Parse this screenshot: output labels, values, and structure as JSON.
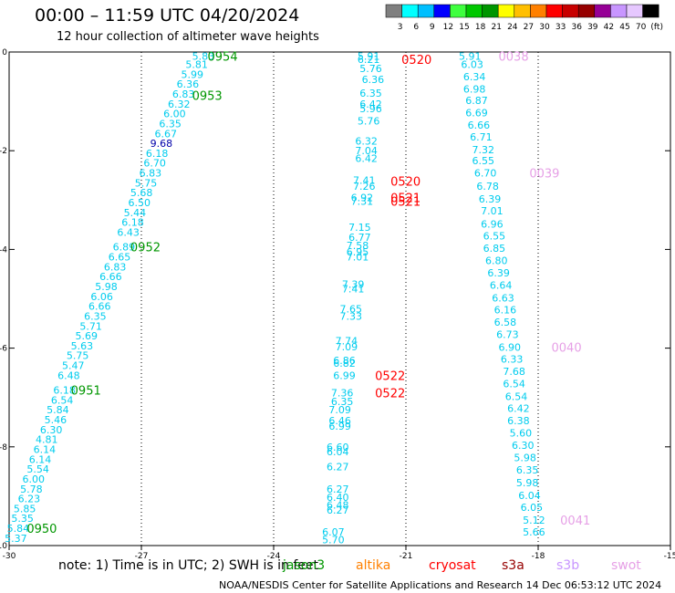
{
  "header": {
    "title": "00:00 – 11:59 UTC 04/20/2024",
    "subtitle": "12 hour collection of altimeter wave heights"
  },
  "color_scale": {
    "labels": [
      "3",
      "6",
      "9",
      "12",
      "15",
      "18",
      "21",
      "24",
      "27",
      "30",
      "33",
      "36",
      "39",
      "42",
      "45",
      "70",
      "(ft)"
    ],
    "colors": [
      "#7f7f7f",
      "#00ffff",
      "#00bfff",
      "#0000ff",
      "#3fff3f",
      "#00c800",
      "#009600",
      "#ffff00",
      "#ffbf00",
      "#ff8000",
      "#ff0000",
      "#c80000",
      "#960000",
      "#960096",
      "#c896ff",
      "#e6c8ff",
      "#000000"
    ]
  },
  "footer": {
    "note_text": "note: 1) Time is in UTC; 2) SWH is in feet",
    "missions": [
      {
        "name": "jason3",
        "color": "#009600"
      },
      {
        "name": "altika",
        "color": "#ff8000"
      },
      {
        "name": "cryosat",
        "color": "#ff0000"
      },
      {
        "name": "s3a",
        "color": "#960000"
      },
      {
        "name": "s3b",
        "color": "#c896ff"
      },
      {
        "name": "swot",
        "color": "#e6a0e6"
      }
    ],
    "credit": "NOAA/NESDIS Center for Satellite Applications and Research    14 Dec 06:53:12 UTC 2024"
  },
  "chart_data": {
    "type": "scatter",
    "xlim": [
      -30,
      -15
    ],
    "ylim": [
      -10,
      0
    ],
    "x_ticks": [
      "-30",
      "-27",
      "-24",
      "-21",
      "-18",
      "-15"
    ],
    "y_ticks": [
      "0",
      "-2",
      "-4",
      "-6",
      "-8",
      "-10"
    ],
    "grid": "dotted-vertical",
    "value_color": "#00ccee",
    "tracks": [
      {
        "mission": "jason3",
        "points": [
          {
            "x": -25.85,
            "y": -0.08,
            "v": "5.83"
          },
          {
            "x": -26.0,
            "y": -0.25,
            "v": "5.81"
          },
          {
            "x": -26.1,
            "y": -0.45,
            "v": "5.99"
          },
          {
            "x": -26.2,
            "y": -0.65,
            "v": "6.36"
          },
          {
            "x": -26.3,
            "y": -0.85,
            "v": "6.83"
          },
          {
            "x": -26.4,
            "y": -1.05,
            "v": "6.32"
          },
          {
            "x": -26.5,
            "y": -1.25,
            "v": "6.00"
          },
          {
            "x": -26.6,
            "y": -1.45,
            "v": "6.35"
          },
          {
            "x": -26.7,
            "y": -1.65,
            "v": "6.67"
          },
          {
            "x": -26.8,
            "y": -1.85,
            "v": "9.68",
            "c": "#0000aa"
          },
          {
            "x": -26.9,
            "y": -2.05,
            "v": "6.18"
          },
          {
            "x": -26.95,
            "y": -2.25,
            "v": "6.70"
          },
          {
            "x": -27.05,
            "y": -2.45,
            "v": "6.83"
          },
          {
            "x": -27.15,
            "y": -2.65,
            "v": "5.75"
          },
          {
            "x": -27.25,
            "y": -2.85,
            "v": "5.68"
          },
          {
            "x": -27.3,
            "y": -3.05,
            "v": "6.50"
          },
          {
            "x": -27.4,
            "y": -3.25,
            "v": "5.44"
          },
          {
            "x": -27.45,
            "y": -3.45,
            "v": "6.18"
          },
          {
            "x": -27.55,
            "y": -3.65,
            "v": "6.43"
          },
          {
            "x": -27.65,
            "y": -3.95,
            "v": "6.89"
          },
          {
            "x": -27.75,
            "y": -4.15,
            "v": "6.65"
          },
          {
            "x": -27.85,
            "y": -4.35,
            "v": "6.83"
          },
          {
            "x": -27.95,
            "y": -4.55,
            "v": "6.66"
          },
          {
            "x": -28.05,
            "y": -4.75,
            "v": "5.98"
          },
          {
            "x": -28.15,
            "y": -4.95,
            "v": "6.06"
          },
          {
            "x": -28.2,
            "y": -5.15,
            "v": "6.66"
          },
          {
            "x": -28.3,
            "y": -5.35,
            "v": "6.35"
          },
          {
            "x": -28.4,
            "y": -5.55,
            "v": "5.71"
          },
          {
            "x": -28.5,
            "y": -5.75,
            "v": "5.69"
          },
          {
            "x": -28.6,
            "y": -5.95,
            "v": "5.63"
          },
          {
            "x": -28.7,
            "y": -6.15,
            "v": "5.75"
          },
          {
            "x": -28.8,
            "y": -6.35,
            "v": "5.47"
          },
          {
            "x": -28.9,
            "y": -6.55,
            "v": "6.48"
          },
          {
            "x": -29.0,
            "y": -6.85,
            "v": "6.18"
          },
          {
            "x": -29.05,
            "y": -7.05,
            "v": "6.54"
          },
          {
            "x": -29.15,
            "y": -7.25,
            "v": "5.84"
          },
          {
            "x": -29.2,
            "y": -7.45,
            "v": "5.46"
          },
          {
            "x": -29.3,
            "y": -7.65,
            "v": "6.30"
          },
          {
            "x": -29.4,
            "y": -7.85,
            "v": "4.81"
          },
          {
            "x": -29.45,
            "y": -8.05,
            "v": "6.14"
          },
          {
            "x": -29.55,
            "y": -8.25,
            "v": "6.14"
          },
          {
            "x": -29.6,
            "y": -8.45,
            "v": "5.54"
          },
          {
            "x": -29.7,
            "y": -8.65,
            "v": "6.00"
          },
          {
            "x": -29.75,
            "y": -8.85,
            "v": "5.78"
          },
          {
            "x": -29.8,
            "y": -9.05,
            "v": "6.23"
          },
          {
            "x": -29.9,
            "y": -9.25,
            "v": "5.85"
          },
          {
            "x": -29.95,
            "y": -9.45,
            "v": "5.35"
          },
          {
            "x": -30.05,
            "y": -9.65,
            "v": "5.84"
          },
          {
            "x": -30.1,
            "y": -9.85,
            "v": "5.37"
          }
        ],
        "times": [
          {
            "x": -25.5,
            "y": -0.08,
            "t": "0954"
          },
          {
            "x": -25.85,
            "y": -0.88,
            "t": "0953"
          },
          {
            "x": -27.25,
            "y": -3.95,
            "t": "0952"
          },
          {
            "x": -28.6,
            "y": -6.85,
            "t": "0951"
          },
          {
            "x": -29.6,
            "y": -9.65,
            "t": "0950"
          }
        ]
      },
      {
        "mission": "cryosat",
        "points": [
          {
            "x": -22.1,
            "y": -0.08,
            "v": "5.91"
          },
          {
            "x": -22.1,
            "y": -0.15,
            "v": "6.21"
          },
          {
            "x": -22.05,
            "y": -0.33,
            "v": "5.76"
          },
          {
            "x": -22.0,
            "y": -0.55,
            "v": "6.36"
          },
          {
            "x": -22.05,
            "y": -0.83,
            "v": "6.35"
          },
          {
            "x": -22.05,
            "y": -1.05,
            "v": "6.42"
          },
          {
            "x": -22.05,
            "y": -1.15,
            "v": "5.96"
          },
          {
            "x": -22.1,
            "y": -1.4,
            "v": "5.76"
          },
          {
            "x": -22.15,
            "y": -1.8,
            "v": "6.32"
          },
          {
            "x": -22.15,
            "y": -2.0,
            "v": "7.04"
          },
          {
            "x": -22.15,
            "y": -2.15,
            "v": "6.42"
          },
          {
            "x": -22.2,
            "y": -2.6,
            "v": "7.41"
          },
          {
            "x": -22.2,
            "y": -2.72,
            "v": "7.26"
          },
          {
            "x": -22.25,
            "y": -2.95,
            "v": "6.92"
          },
          {
            "x": -22.25,
            "y": -3.02,
            "v": "7.31"
          },
          {
            "x": -22.3,
            "y": -3.55,
            "v": "7.15"
          },
          {
            "x": -22.3,
            "y": -3.75,
            "v": "6.77"
          },
          {
            "x": -22.35,
            "y": -3.92,
            "v": "7.58"
          },
          {
            "x": -22.35,
            "y": -4.05,
            "v": "6.95"
          },
          {
            "x": -22.35,
            "y": -4.15,
            "v": "7.01"
          },
          {
            "x": -22.45,
            "y": -4.7,
            "v": "7.39"
          },
          {
            "x": -22.45,
            "y": -4.8,
            "v": "7.41"
          },
          {
            "x": -22.5,
            "y": -5.2,
            "v": "7.65"
          },
          {
            "x": -22.5,
            "y": -5.35,
            "v": "7.33"
          },
          {
            "x": -22.6,
            "y": -5.85,
            "v": "7.74"
          },
          {
            "x": -22.6,
            "y": -5.97,
            "v": "7.09"
          },
          {
            "x": -22.65,
            "y": -6.25,
            "v": "6.86"
          },
          {
            "x": -22.65,
            "y": -6.3,
            "v": "6.82"
          },
          {
            "x": -22.65,
            "y": -6.55,
            "v": "6.99"
          },
          {
            "x": -22.7,
            "y": -6.9,
            "v": "7.36"
          },
          {
            "x": -22.7,
            "y": -7.08,
            "v": "6.35"
          },
          {
            "x": -22.75,
            "y": -7.25,
            "v": "7.09"
          },
          {
            "x": -22.75,
            "y": -7.47,
            "v": "6.46"
          },
          {
            "x": -22.75,
            "y": -7.58,
            "v": "6.99"
          },
          {
            "x": -22.8,
            "y": -8.0,
            "v": "6.60"
          },
          {
            "x": -22.8,
            "y": -8.1,
            "v": "6.04"
          },
          {
            "x": -22.8,
            "y": -8.4,
            "v": "6.27"
          },
          {
            "x": -22.8,
            "y": -8.85,
            "v": "6.27"
          },
          {
            "x": -22.8,
            "y": -9.02,
            "v": "6.40"
          },
          {
            "x": -22.8,
            "y": -9.18,
            "v": "6.48"
          },
          {
            "x": -22.8,
            "y": -9.28,
            "v": "6.27"
          },
          {
            "x": -22.9,
            "y": -9.72,
            "v": "6.07"
          },
          {
            "x": -22.9,
            "y": -9.88,
            "v": "5.70"
          }
        ],
        "times": [
          {
            "x": -21.1,
            "y": -0.15,
            "t": "0520"
          },
          {
            "x": -21.35,
            "y": -2.62,
            "t": "0520"
          },
          {
            "x": -21.35,
            "y": -2.95,
            "t": "0521"
          },
          {
            "x": -21.35,
            "y": -3.02,
            "t": "0521"
          },
          {
            "x": -21.7,
            "y": -6.55,
            "t": "0522"
          },
          {
            "x": -21.7,
            "y": -6.9,
            "t": "0522"
          }
        ]
      },
      {
        "mission": "swot",
        "points": [
          {
            "x": -19.8,
            "y": -0.08,
            "v": "5.91"
          },
          {
            "x": -19.75,
            "y": -0.25,
            "v": "6.03"
          },
          {
            "x": -19.7,
            "y": -0.5,
            "v": "6.34"
          },
          {
            "x": -19.7,
            "y": -0.75,
            "v": "6.98"
          },
          {
            "x": -19.65,
            "y": -0.98,
            "v": "6.87"
          },
          {
            "x": -19.65,
            "y": -1.23,
            "v": "6.69"
          },
          {
            "x": -19.6,
            "y": -1.48,
            "v": "6.66"
          },
          {
            "x": -19.55,
            "y": -1.72,
            "v": "6.71"
          },
          {
            "x": -19.5,
            "y": -1.98,
            "v": "7.32"
          },
          {
            "x": -19.5,
            "y": -2.2,
            "v": "6.55"
          },
          {
            "x": -19.45,
            "y": -2.45,
            "v": "6.70"
          },
          {
            "x": -19.4,
            "y": -2.72,
            "v": "6.78"
          },
          {
            "x": -19.35,
            "y": -2.98,
            "v": "6.39"
          },
          {
            "x": -19.3,
            "y": -3.22,
            "v": "7.01"
          },
          {
            "x": -19.3,
            "y": -3.48,
            "v": "6.96"
          },
          {
            "x": -19.25,
            "y": -3.72,
            "v": "6.55"
          },
          {
            "x": -19.25,
            "y": -3.97,
            "v": "6.85"
          },
          {
            "x": -19.2,
            "y": -4.22,
            "v": "6.80"
          },
          {
            "x": -19.15,
            "y": -4.47,
            "v": "6.39"
          },
          {
            "x": -19.1,
            "y": -4.72,
            "v": "6.64"
          },
          {
            "x": -19.05,
            "y": -4.98,
            "v": "6.63"
          },
          {
            "x": -19.0,
            "y": -5.22,
            "v": "6.16"
          },
          {
            "x": -19.0,
            "y": -5.47,
            "v": "6.58"
          },
          {
            "x": -18.95,
            "y": -5.72,
            "v": "6.73"
          },
          {
            "x": -18.9,
            "y": -5.98,
            "v": "6.90"
          },
          {
            "x": -18.85,
            "y": -6.22,
            "v": "6.33"
          },
          {
            "x": -18.8,
            "y": -6.47,
            "v": "7.68"
          },
          {
            "x": -18.8,
            "y": -6.72,
            "v": "6.54"
          },
          {
            "x": -18.75,
            "y": -6.98,
            "v": "6.54"
          },
          {
            "x": -18.7,
            "y": -7.22,
            "v": "6.42"
          },
          {
            "x": -18.7,
            "y": -7.47,
            "v": "6.38"
          },
          {
            "x": -18.65,
            "y": -7.72,
            "v": "5.60"
          },
          {
            "x": -18.6,
            "y": -7.97,
            "v": "6.30"
          },
          {
            "x": -18.55,
            "y": -8.22,
            "v": "5.98"
          },
          {
            "x": -18.5,
            "y": -8.47,
            "v": "6.35"
          },
          {
            "x": -18.5,
            "y": -8.72,
            "v": "5.98"
          },
          {
            "x": -18.45,
            "y": -8.98,
            "v": "6.04"
          },
          {
            "x": -18.4,
            "y": -9.22,
            "v": "6.05"
          },
          {
            "x": -18.35,
            "y": -9.48,
            "v": "5.12"
          },
          {
            "x": -18.35,
            "y": -9.72,
            "v": "5.66"
          }
        ],
        "times": [
          {
            "x": -18.9,
            "y": -0.08,
            "t": "0038"
          },
          {
            "x": -18.2,
            "y": -2.45,
            "t": "0039"
          },
          {
            "x": -17.7,
            "y": -5.98,
            "t": "0040"
          },
          {
            "x": -17.5,
            "y": -9.48,
            "t": "0041"
          }
        ]
      }
    ]
  }
}
